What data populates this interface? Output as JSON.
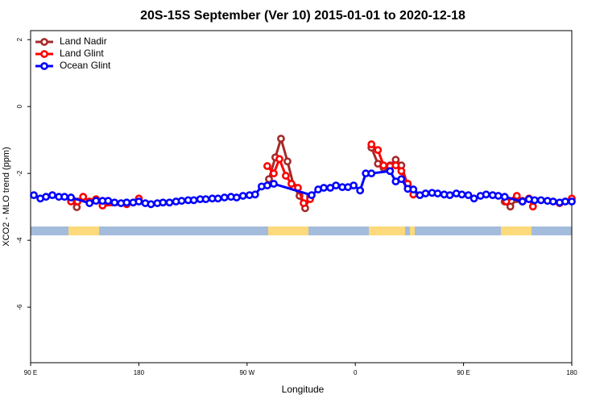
{
  "chart_data": {
    "type": "line",
    "title": "20S-15S September (Ver 10)   2015-01-01 to 2020-12-18",
    "x_label": "Longitude",
    "y_label": "XCO2 - MLO trend (ppm)",
    "xlim": [
      90,
      540
    ],
    "ylim": [
      -7.66,
      2.27
    ],
    "xticks": [
      {
        "value": 90,
        "label": "90 E"
      },
      {
        "value": 180,
        "label": "180"
      },
      {
        "value": 270,
        "label": "90 W"
      },
      {
        "value": 360,
        "label": "0"
      },
      {
        "value": 450,
        "label": "90 E"
      },
      {
        "value": 540,
        "label": "180"
      }
    ],
    "yticks": [
      2,
      0,
      -2,
      -4,
      -6
    ],
    "legend": "top-left",
    "series": [
      {
        "name": "Land Nadir",
        "color": "#a52a2a",
        "x": [
          123.6,
          128.4,
          133.7,
          null,
          288.2,
          293.5,
          298.2,
          303.6,
          309.0,
          313.6,
          318.3,
          322.4,
          null,
          373.4,
          378.8,
          383.5,
          388.9,
          393.6,
          398.3,
          403.6,
          408.3,
          null,
          484.2,
          488.9,
          494.3,
          499.0
        ],
        "values": [
          -2.8,
          -3.01,
          -2.7,
          null,
          -2.17,
          -1.52,
          -0.96,
          -1.64,
          -2.41,
          -2.67,
          -3.04,
          -2.7,
          null,
          -1.23,
          -1.71,
          -1.83,
          -1.76,
          -1.59,
          -1.76,
          -2.36,
          -2.63,
          null,
          -2.84,
          -2.99,
          -2.77,
          -2.82
        ]
      },
      {
        "name": "Land Glint",
        "color": "#ff0000",
        "x": [
          123.6,
          129.0,
          133.7,
          139.0,
          144.4,
          149.8,
          169.9,
          180.0,
          null,
          286.8,
          292.2,
          296.9,
          302.2,
          306.9,
          312.3,
          317.0,
          322.4,
          null,
          373.4,
          378.8,
          383.5,
          388.9,
          393.6,
          398.3,
          403.6,
          408.3,
          null,
          485.5,
          494.3,
          499.0,
          504.4,
          507.7,
          null,
          529.9,
          540.0
        ],
        "values": [
          -2.84,
          -2.84,
          -2.7,
          -2.84,
          -2.77,
          -2.96,
          -2.92,
          -2.75,
          null,
          -1.78,
          -2.0,
          -1.57,
          -2.07,
          -2.31,
          -2.43,
          -2.89,
          -2.77,
          null,
          -1.13,
          -1.3,
          -1.76,
          -1.78,
          -1.76,
          -1.93,
          -2.31,
          -2.63,
          null,
          -2.84,
          -2.67,
          -2.84,
          -2.75,
          -2.99,
          null,
          -2.89,
          -2.75
        ]
      },
      {
        "name": "Ocean Glint",
        "color": "#0000ff",
        "x": [
          92.7,
          98.1,
          102.8,
          108.1,
          113.5,
          118.2,
          123.6,
          139.0,
          144.4,
          149.8,
          154.5,
          159.8,
          165.2,
          169.9,
          175.3,
          180.0,
          185.4,
          190.1,
          195.4,
          200.1,
          205.5,
          210.9,
          215.6,
          221.0,
          225.7,
          231.0,
          235.7,
          241.1,
          245.8,
          251.2,
          256.6,
          261.3,
          266.6,
          272.0,
          276.7,
          282.1,
          286.8,
          292.2,
          323.7,
          329.1,
          333.8,
          339.2,
          343.9,
          349.2,
          353.9,
          358.6,
          364.0,
          368.7,
          373.4,
          388.9,
          393.6,
          398.3,
          403.6,
          408.3,
          413.7,
          418.4,
          423.8,
          428.5,
          433.9,
          438.6,
          444.0,
          448.6,
          454.0,
          458.7,
          464.1,
          468.8,
          474.2,
          478.9,
          484.2,
          499.0,
          504.4,
          509.1,
          514.4,
          519.8,
          524.5,
          529.9,
          534.6,
          540.0
        ],
        "values": [
          -2.65,
          -2.75,
          -2.7,
          -2.65,
          -2.7,
          -2.7,
          -2.72,
          -2.89,
          -2.82,
          -2.82,
          -2.82,
          -2.87,
          -2.89,
          -2.87,
          -2.87,
          -2.84,
          -2.89,
          -2.92,
          -2.89,
          -2.87,
          -2.87,
          -2.84,
          -2.82,
          -2.8,
          -2.8,
          -2.77,
          -2.77,
          -2.75,
          -2.75,
          -2.72,
          -2.7,
          -2.72,
          -2.67,
          -2.65,
          -2.63,
          -2.39,
          -2.36,
          -2.31,
          -2.65,
          -2.48,
          -2.43,
          -2.43,
          -2.36,
          -2.41,
          -2.41,
          -2.36,
          -2.51,
          -2.0,
          -2.0,
          -1.93,
          -2.24,
          -2.17,
          -2.46,
          -2.48,
          -2.65,
          -2.6,
          -2.58,
          -2.6,
          -2.63,
          -2.65,
          -2.6,
          -2.63,
          -2.65,
          -2.75,
          -2.67,
          -2.63,
          -2.65,
          -2.67,
          -2.7,
          -2.84,
          -2.77,
          -2.8,
          -2.8,
          -2.82,
          -2.84,
          -2.87,
          -2.84,
          -2.84
        ]
      }
    ]
  }
}
